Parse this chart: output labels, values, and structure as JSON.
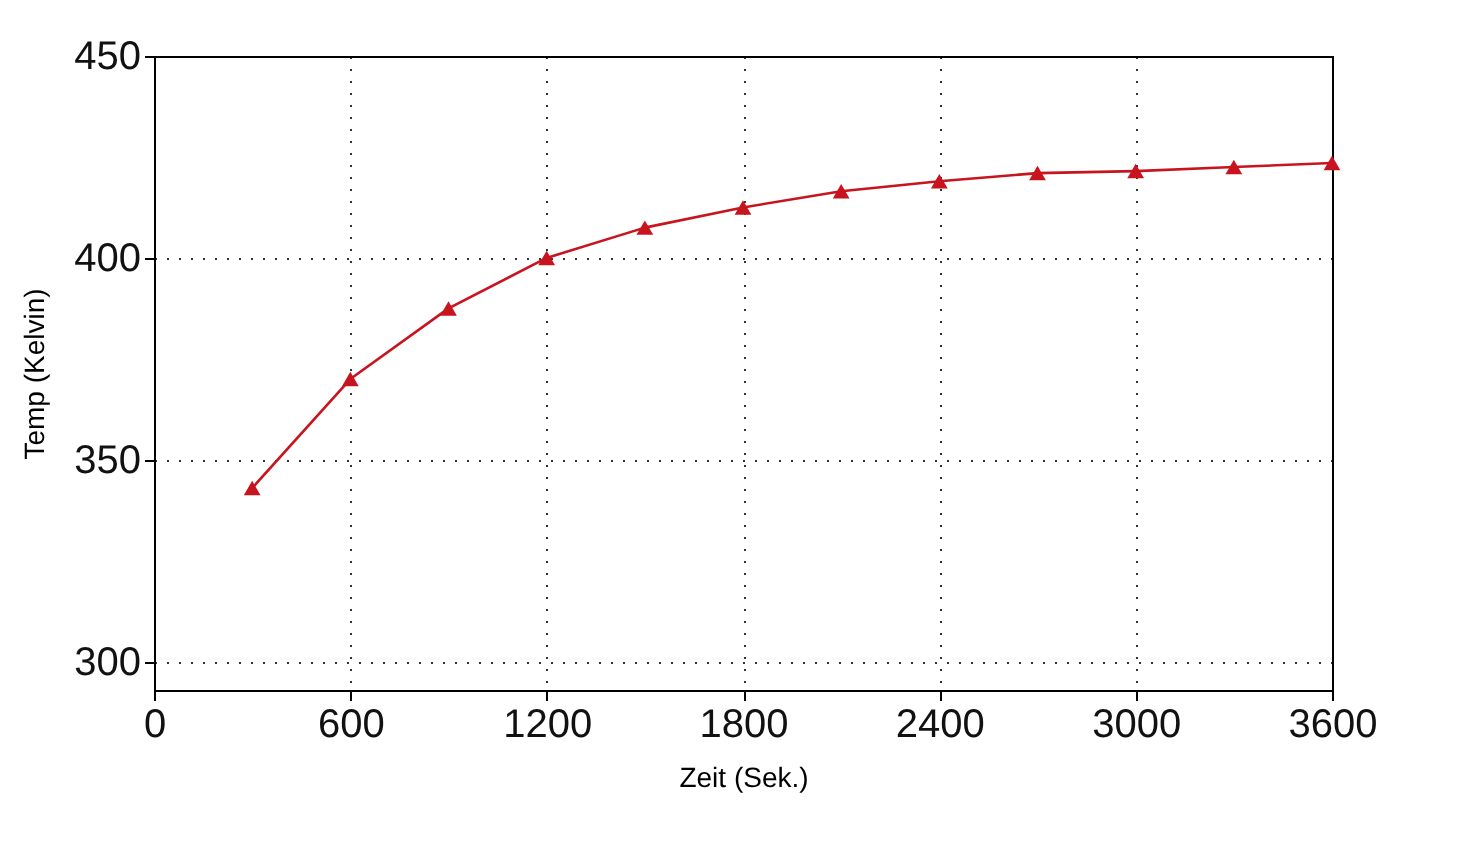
{
  "chart_data": {
    "type": "line",
    "xlabel": "Zeit (Sek.)",
    "ylabel": "Temp (Kelvin)",
    "x": [
      300,
      600,
      900,
      1200,
      1500,
      1800,
      2100,
      2400,
      2700,
      3000,
      3300,
      3600
    ],
    "series": [
      {
        "color": "#c8141e",
        "values": [
          343,
          370,
          387.5,
          400,
          407.5,
          412.5,
          416.5,
          419,
          421,
          421.5,
          422.5,
          423.5
        ]
      }
    ],
    "xlim": [
      0,
      3600
    ],
    "xticks": [
      0,
      600,
      1200,
      1800,
      2400,
      3000,
      3600
    ],
    "ylim": [
      293,
      450
    ],
    "yticks": [
      300,
      350,
      400,
      450
    ],
    "grid": true,
    "marker": "triangle",
    "line_style": "solid"
  }
}
